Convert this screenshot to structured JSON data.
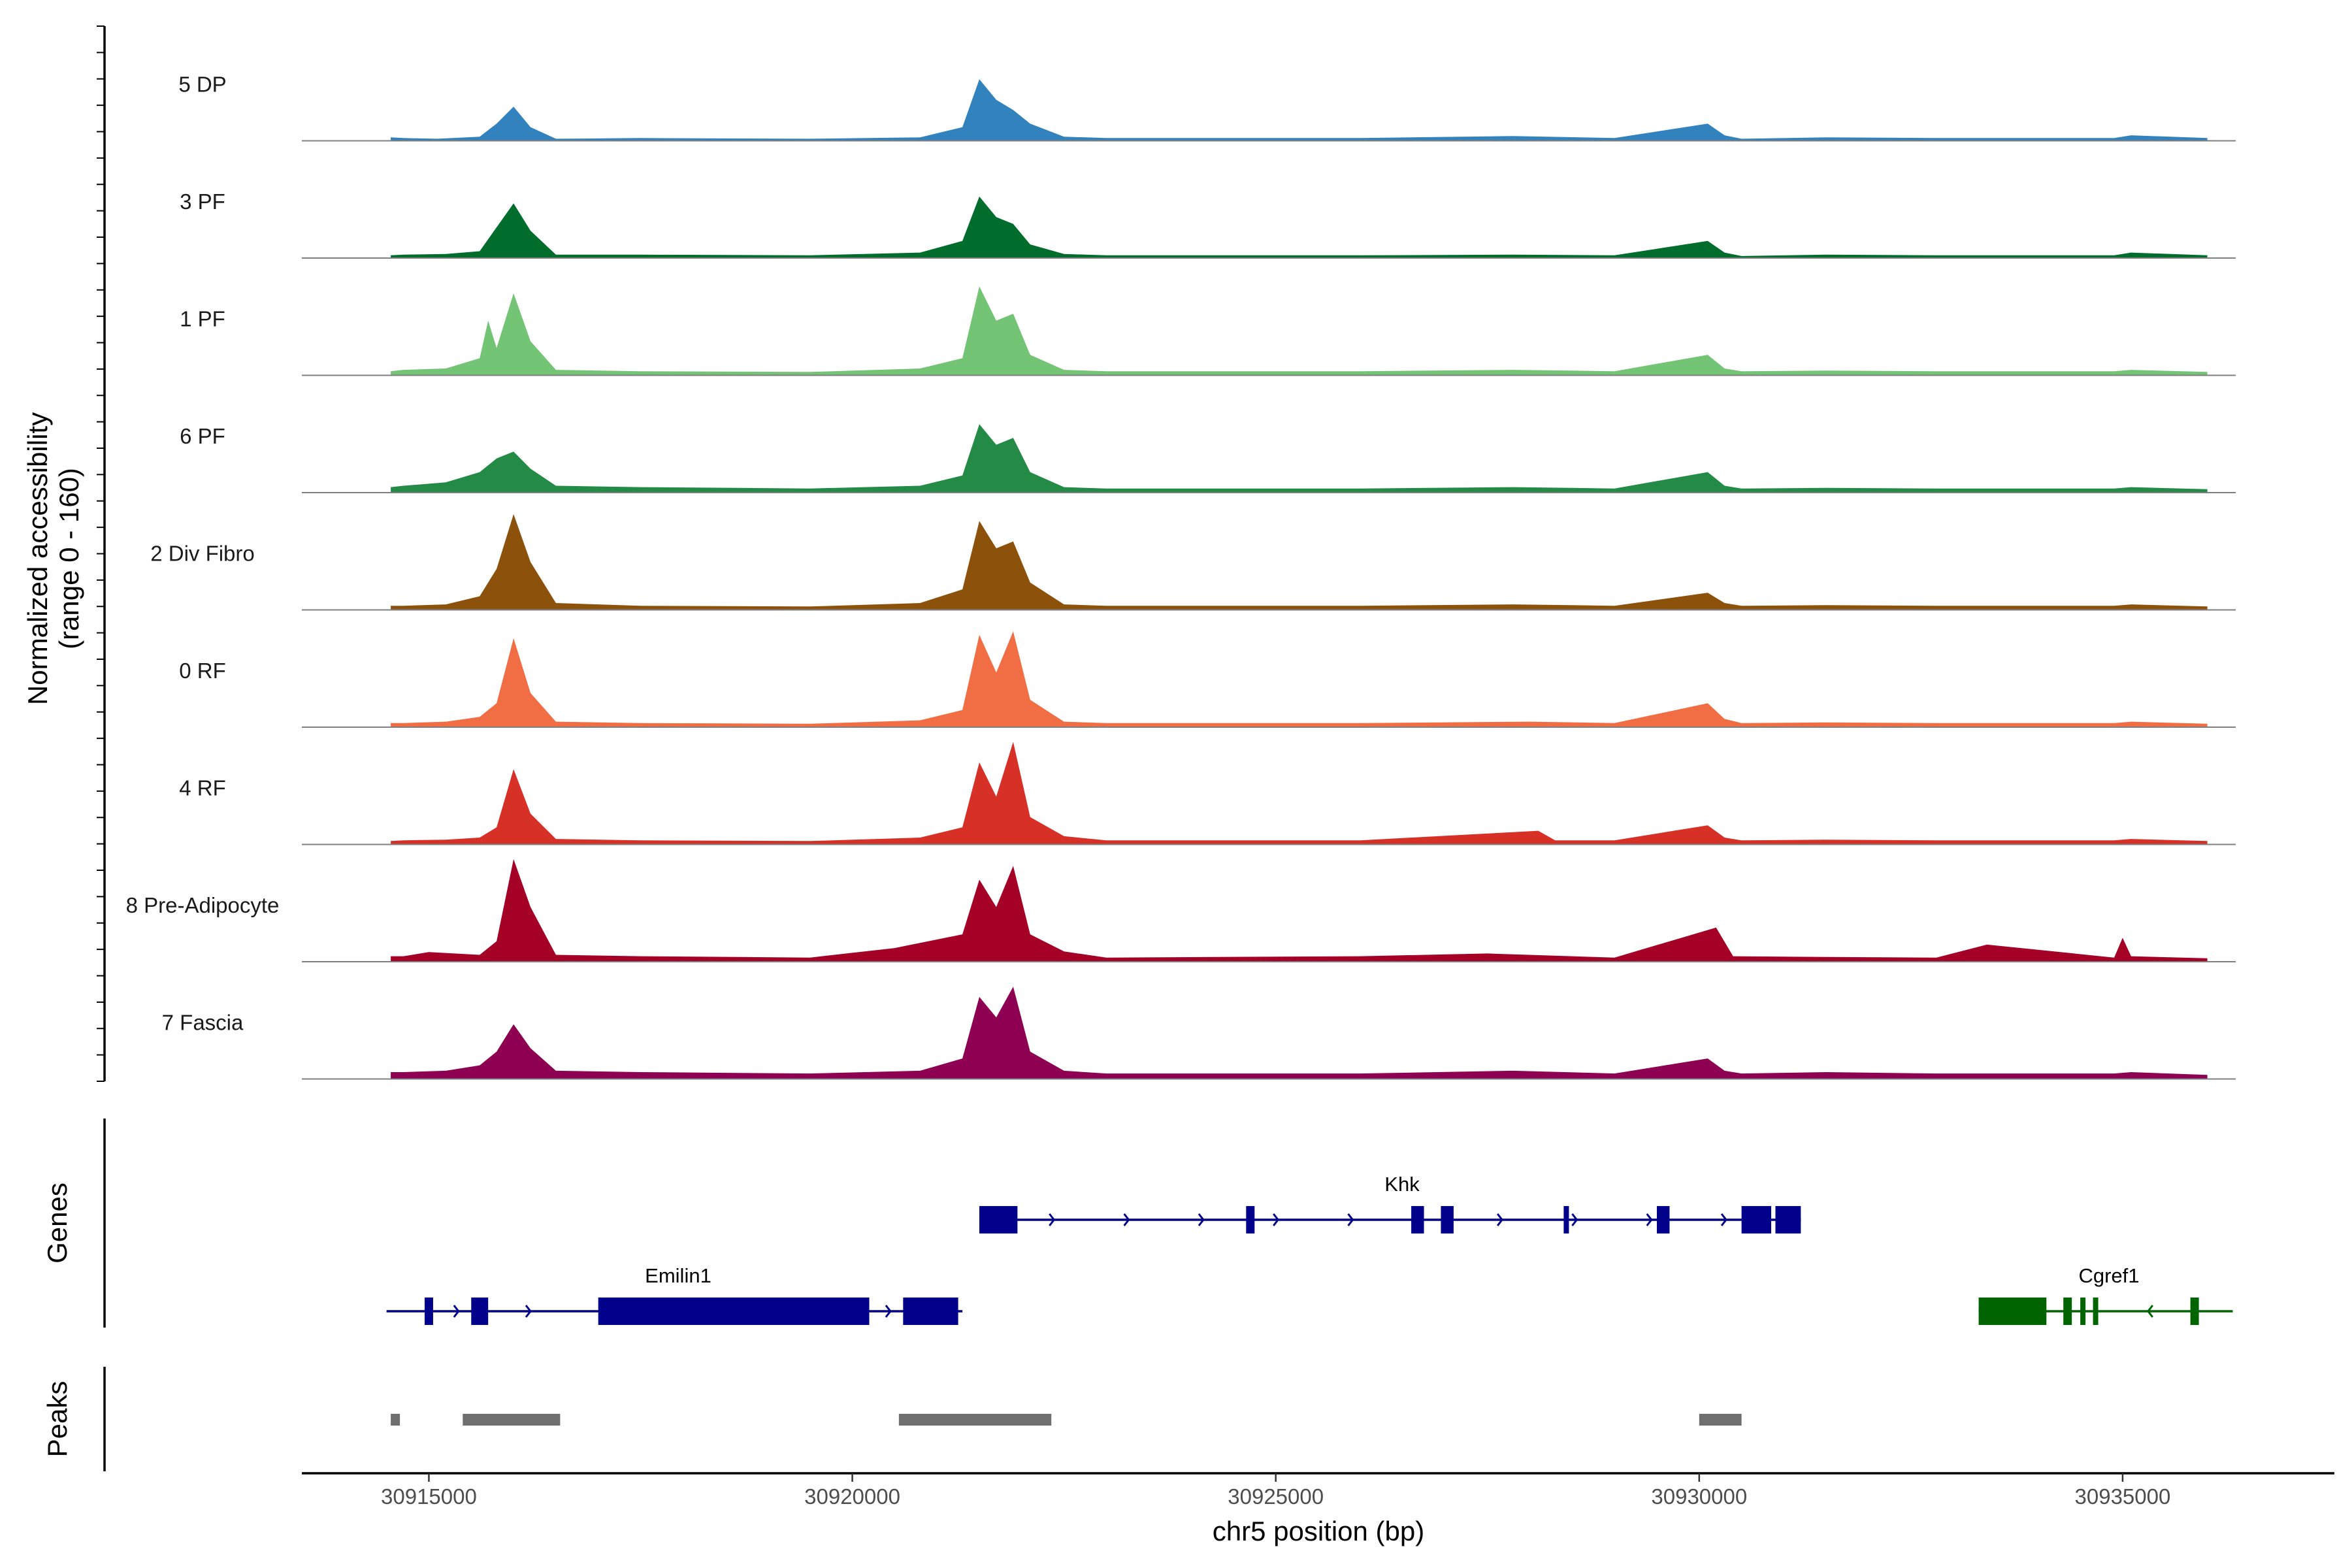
{
  "chart_data": {
    "type": "area",
    "title": "",
    "xlabel": "chr5 position (bp)",
    "ylabel_line1": "Normalized accessibility",
    "ylabel_line2": "(range 0 - 160)",
    "xlim": [
      30913500,
      30937500
    ],
    "ylim": [
      0,
      160
    ],
    "x_ticks": [
      30915000,
      30920000,
      30925000,
      30930000,
      30935000
    ],
    "x_tick_labels": [
      "30915000",
      "30920000",
      "30925000",
      "30930000",
      "30935000"
    ],
    "series": [
      {
        "name": "5 DP",
        "color": "#3182bd",
        "x": [
          30914550,
          30914700,
          30915100,
          30915600,
          30915800,
          30916000,
          30916200,
          30916500,
          30917500,
          30919500,
          30920800,
          30921300,
          30921500,
          30921700,
          30921900,
          30922100,
          30922500,
          30923000,
          30926000,
          30927800,
          30929000,
          30930100,
          30930300,
          30930500,
          30931500,
          30932800,
          30934900,
          30935100,
          30936000
        ],
        "values": [
          5,
          4,
          3,
          6,
          25,
          50,
          20,
          3,
          4,
          3,
          5,
          20,
          90,
          60,
          45,
          25,
          6,
          4,
          4,
          7,
          4,
          25,
          8,
          3,
          5,
          4,
          4,
          8,
          4
        ]
      },
      {
        "name": "3 PF",
        "color": "#006d2c",
        "x": [
          30914550,
          30914700,
          30915200,
          30915600,
          30915800,
          30916000,
          30916200,
          30916500,
          30917500,
          30919500,
          30920800,
          30921300,
          30921500,
          30921700,
          30921900,
          30922100,
          30922500,
          30923000,
          30926000,
          30927800,
          30929000,
          30930100,
          30930300,
          30930500,
          30931500,
          30932800,
          30934900,
          30935100,
          30936000
        ],
        "values": [
          4,
          5,
          6,
          10,
          45,
          80,
          40,
          5,
          5,
          4,
          8,
          25,
          90,
          60,
          50,
          20,
          6,
          4,
          4,
          5,
          4,
          25,
          8,
          3,
          5,
          4,
          4,
          8,
          4
        ]
      },
      {
        "name": "1 PF",
        "color": "#74c476",
        "x": [
          30914550,
          30914700,
          30915200,
          30915600,
          30915700,
          30915800,
          30916000,
          30916200,
          30916500,
          30917500,
          30919500,
          30920800,
          30921300,
          30921500,
          30921700,
          30921900,
          30922100,
          30922500,
          30923000,
          30926000,
          30927800,
          30929000,
          30930100,
          30930300,
          30930500,
          30931500,
          30932800,
          30934900,
          30935100,
          30936000
        ],
        "values": [
          6,
          8,
          10,
          25,
          80,
          40,
          120,
          50,
          8,
          6,
          5,
          10,
          25,
          130,
          80,
          90,
          30,
          8,
          6,
          6,
          8,
          6,
          30,
          10,
          6,
          7,
          6,
          6,
          8,
          5
        ]
      },
      {
        "name": "6 PF",
        "color": "#238b45",
        "x": [
          30914550,
          30914700,
          30915200,
          30915600,
          30915800,
          30916000,
          30916200,
          30916500,
          30917500,
          30919500,
          30920800,
          30921300,
          30921500,
          30921700,
          30921900,
          30922100,
          30922500,
          30923000,
          30926000,
          30927800,
          30929000,
          30930100,
          30930300,
          30930500,
          30931500,
          30932800,
          30934900,
          30935100,
          30936000
        ],
        "values": [
          8,
          10,
          15,
          30,
          50,
          60,
          35,
          10,
          8,
          6,
          10,
          25,
          100,
          70,
          80,
          30,
          8,
          6,
          6,
          8,
          6,
          30,
          10,
          6,
          7,
          6,
          6,
          8,
          5
        ]
      },
      {
        "name": "2 Div Fibro",
        "color": "#8c510a",
        "x": [
          30914550,
          30914700,
          30915200,
          30915600,
          30915800,
          30916000,
          30916200,
          30916500,
          30917500,
          30919500,
          30920800,
          30921300,
          30921500,
          30921700,
          30921900,
          30922100,
          30922500,
          30923000,
          30926000,
          30927800,
          30929000,
          30930100,
          30930300,
          30930500,
          30931500,
          30932800,
          30934900,
          30935100,
          30936000
        ],
        "values": [
          6,
          6,
          8,
          20,
          60,
          140,
          70,
          10,
          6,
          5,
          10,
          30,
          130,
          90,
          100,
          40,
          8,
          6,
          6,
          8,
          6,
          25,
          10,
          6,
          7,
          6,
          6,
          8,
          5
        ]
      },
      {
        "name": "0 RF",
        "color": "#f16d43",
        "x": [
          30914550,
          30914700,
          30915200,
          30915600,
          30915800,
          30916000,
          30916200,
          30916500,
          30917500,
          30919500,
          30920800,
          30921300,
          30921500,
          30921700,
          30921900,
          30922100,
          30922500,
          30923000,
          30926000,
          30928000,
          30929000,
          30930100,
          30930300,
          30930500,
          30931500,
          30932800,
          30934900,
          30935100,
          30936000
        ],
        "values": [
          6,
          6,
          8,
          15,
          35,
          130,
          50,
          8,
          6,
          5,
          10,
          25,
          135,
          80,
          140,
          40,
          8,
          6,
          6,
          8,
          6,
          35,
          12,
          6,
          7,
          6,
          6,
          8,
          5
        ]
      },
      {
        "name": "4 RF",
        "color": "#d73027",
        "x": [
          30914550,
          30914700,
          30915200,
          30915600,
          30915800,
          30916000,
          30916200,
          30916500,
          30917500,
          30919500,
          30920800,
          30921300,
          30921500,
          30921700,
          30921900,
          30922100,
          30922500,
          30923000,
          30926000,
          30928100,
          30928300,
          30929000,
          30930100,
          30930300,
          30930500,
          30931500,
          30932800,
          30934900,
          30935100,
          30936000
        ],
        "values": [
          5,
          6,
          7,
          10,
          25,
          110,
          45,
          8,
          6,
          5,
          10,
          25,
          120,
          70,
          150,
          40,
          12,
          6,
          6,
          20,
          6,
          6,
          28,
          10,
          6,
          7,
          6,
          6,
          8,
          5
        ]
      },
      {
        "name": "8 Pre-Adipocyte",
        "color": "#a50026",
        "x": [
          30914550,
          30914700,
          30915000,
          30915600,
          30915800,
          30916000,
          30916200,
          30916500,
          30917500,
          30919500,
          30920500,
          30921300,
          30921500,
          30921700,
          30921900,
          30922100,
          30922500,
          30923000,
          30926000,
          30927500,
          30929000,
          30930200,
          30930400,
          30931500,
          30932800,
          30933400,
          30934900,
          30935000,
          30935100,
          30936000
        ],
        "values": [
          8,
          8,
          14,
          10,
          30,
          150,
          80,
          10,
          8,
          6,
          20,
          40,
          120,
          80,
          140,
          40,
          15,
          6,
          8,
          12,
          6,
          50,
          8,
          7,
          6,
          25,
          6,
          35,
          8,
          5
        ]
      },
      {
        "name": "7 Fascia",
        "color": "#8e0152",
        "x": [
          30914550,
          30914700,
          30915200,
          30915600,
          30915800,
          30916000,
          30916200,
          30916500,
          30917500,
          30919500,
          30920800,
          30921300,
          30921500,
          30921700,
          30921900,
          30922100,
          30922500,
          30923000,
          30926000,
          30927800,
          30929000,
          30930100,
          30930300,
          30930500,
          30931500,
          30932800,
          30934900,
          30935100,
          30936000
        ],
        "values": [
          10,
          10,
          12,
          20,
          40,
          80,
          45,
          12,
          10,
          8,
          12,
          30,
          120,
          90,
          135,
          40,
          12,
          8,
          8,
          12,
          8,
          30,
          12,
          8,
          10,
          8,
          8,
          10,
          6
        ]
      }
    ],
    "genes": [
      {
        "name": "Khk",
        "color": "#00008b",
        "strand": "+",
        "start": 30921500,
        "end": 30931200,
        "row": 0,
        "exons": [
          [
            30921500,
            30921950
          ],
          [
            30924650,
            30924750
          ],
          [
            30926600,
            30926750
          ],
          [
            30926950,
            30927100
          ],
          [
            30928400,
            30928450
          ],
          [
            30929500,
            30929650
          ],
          [
            30930500,
            30930850
          ],
          [
            30930900,
            30931200
          ]
        ]
      },
      {
        "name": "Emilin1",
        "color": "#00008b",
        "strand": "+",
        "start": 30914500,
        "end": 30921300,
        "row": 1,
        "exons": [
          [
            30914950,
            30915050
          ],
          [
            30915500,
            30915700
          ],
          [
            30917000,
            30920200
          ],
          [
            30920600,
            30921250
          ]
        ]
      },
      {
        "name": "Cgref1",
        "color": "#006400",
        "strand": "-",
        "start": 30933300,
        "end": 30936300,
        "row": 1,
        "exons": [
          [
            30933300,
            30934100
          ],
          [
            30934300,
            30934400
          ],
          [
            30934500,
            30934550
          ],
          [
            30934650,
            30934700
          ],
          [
            30935800,
            30935900
          ]
        ]
      }
    ],
    "peaks": [
      [
        30914550,
        30914650
      ],
      [
        30915400,
        30916550
      ],
      [
        30920550,
        30922350
      ],
      [
        30930000,
        30930500
      ]
    ],
    "panel_labels": {
      "genes": "Genes",
      "peaks": "Peaks"
    }
  }
}
